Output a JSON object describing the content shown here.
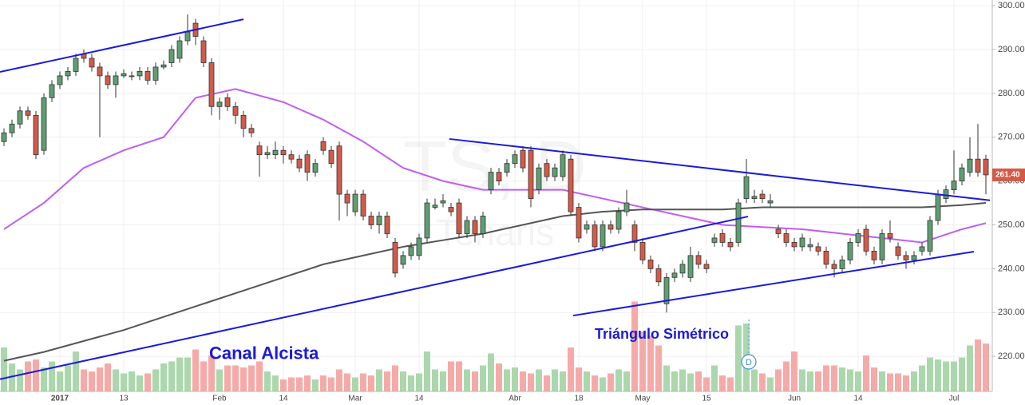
{
  "chart_data": {
    "type": "candlestick",
    "watermark": [
      "TS, D",
      "Tenaris"
    ],
    "categories": [
      null,
      null,
      null,
      null,
      null,
      null,
      null,
      "2017",
      null,
      null,
      null,
      null,
      null,
      null,
      null,
      "13",
      null,
      null,
      null,
      null,
      null,
      null,
      null,
      null,
      null,
      null,
      null,
      "Feb",
      null,
      null,
      null,
      null,
      null,
      null,
      null,
      "14",
      null,
      null,
      null,
      null,
      null,
      null,
      null,
      null,
      "Mar",
      null,
      null,
      null,
      null,
      null,
      null,
      null,
      "14",
      null,
      null,
      null,
      null,
      null,
      null,
      null,
      null,
      null,
      null,
      null,
      "Abr",
      null,
      null,
      null,
      null,
      null,
      null,
      null,
      "18",
      null,
      null,
      null,
      null,
      null,
      null,
      null,
      "May",
      null,
      null,
      null,
      null,
      null,
      null,
      null,
      "15",
      null,
      null,
      null,
      null,
      null,
      null,
      null,
      null,
      null,
      null,
      "Jun",
      null,
      null,
      null,
      null,
      null,
      null,
      null,
      "14",
      null,
      null,
      null,
      null,
      null,
      null,
      null,
      null,
      null,
      null,
      null,
      "Jul",
      null,
      null,
      null,
      null
    ],
    "open": [
      269,
      271,
      273,
      276,
      275,
      267,
      279,
      282,
      284,
      285,
      289,
      288,
      286,
      284,
      282,
      284,
      284,
      284,
      285,
      283,
      286,
      287,
      288,
      292,
      296,
      292,
      287,
      277,
      279,
      277,
      275,
      272,
      268,
      266,
      266,
      267,
      266,
      265,
      266,
      262,
      269,
      267,
      268,
      257,
      253,
      257,
      252,
      250,
      252,
      246,
      241,
      243,
      243,
      247,
      254,
      255,
      254,
      255,
      248,
      251,
      248,
      258,
      262,
      262,
      264,
      267,
      267,
      258,
      264,
      261,
      261,
      265,
      254,
      249,
      250,
      245,
      250,
      249,
      253,
      250,
      246,
      242,
      240,
      232,
      238,
      239,
      238,
      243,
      241,
      246,
      248,
      246,
      246,
      256,
      256,
      257,
      255,
      249,
      248,
      246,
      245,
      245,
      245,
      244,
      241,
      240,
      242,
      246,
      249,
      244,
      242,
      248,
      245,
      243,
      242,
      244,
      244,
      251,
      256,
      258,
      260,
      262,
      265,
      265
    ],
    "close": [
      271,
      273,
      276,
      275,
      266,
      279,
      282,
      284,
      285,
      288,
      288,
      286,
      284,
      282,
      284,
      284.5,
      284,
      285,
      283,
      286,
      286.5,
      290,
      292,
      294,
      293,
      287,
      277,
      278,
      277,
      275,
      272,
      271,
      266,
      266.5,
      267,
      266,
      265,
      263,
      262,
      264,
      267,
      264,
      257,
      255,
      257,
      252,
      250,
      252,
      248,
      239,
      243,
      245,
      247,
      255,
      254.5,
      255.5,
      253,
      248,
      251,
      248,
      252,
      262,
      260,
      264,
      266,
      263,
      256,
      263,
      261,
      263,
      266,
      253,
      247,
      250,
      245,
      250,
      249,
      253,
      255,
      246,
      242,
      240,
      237,
      238,
      239,
      241,
      243,
      241,
      240,
      247,
      246,
      245,
      255,
      261,
      256.5,
      256,
      255.5,
      248,
      246,
      245,
      247,
      245.5,
      244,
      241,
      240,
      242,
      246,
      248,
      244,
      242,
      248,
      247,
      243,
      242,
      243,
      245,
      251,
      257,
      258,
      260,
      263,
      265,
      262,
      261.4
    ],
    "high": [
      272,
      274,
      277,
      277,
      276,
      280,
      283,
      285,
      286,
      289,
      290,
      289,
      287,
      285,
      285,
      285.5,
      285,
      286,
      286,
      287,
      287.5,
      291,
      293,
      298,
      297,
      293,
      288,
      279,
      280,
      278,
      276,
      273,
      269,
      268,
      269,
      268,
      267,
      266,
      267,
      265,
      270,
      268,
      269,
      258,
      258,
      258,
      253,
      253,
      253,
      247,
      244,
      246,
      248,
      256,
      256,
      257,
      255,
      256,
      252,
      252,
      253,
      263,
      263,
      265,
      267,
      268,
      268,
      264,
      265,
      264,
      267,
      266,
      255,
      251,
      251,
      251,
      251,
      254,
      258,
      251,
      247,
      243,
      241,
      239,
      240,
      242,
      245,
      244,
      242,
      248,
      249,
      247,
      256,
      265,
      258,
      258,
      257,
      250,
      249,
      247,
      248,
      247,
      246,
      245,
      242,
      243,
      247,
      249,
      250,
      245,
      249,
      251,
      246,
      244,
      244,
      246,
      252,
      258,
      259,
      267,
      264,
      270,
      273,
      266
    ],
    "low": [
      268,
      270,
      272,
      274,
      265,
      266,
      278,
      281,
      283,
      284,
      287,
      285,
      270,
      281,
      279,
      283.5,
      283,
      283,
      282,
      282,
      285.5,
      286,
      287,
      291,
      291,
      286,
      275,
      274,
      276,
      273,
      270,
      270,
      261,
      265,
      265,
      264,
      264,
      262,
      260,
      261,
      266,
      263,
      251,
      252,
      252,
      251,
      249,
      248,
      247,
      238,
      240,
      242,
      242,
      246,
      253.5,
      254,
      252,
      247,
      247,
      246,
      247,
      257,
      259,
      261,
      263,
      262,
      254,
      257,
      260,
      260,
      260,
      252,
      246,
      248,
      244,
      244,
      248,
      248,
      252,
      244,
      241,
      239,
      236,
      230,
      237,
      238,
      237,
      240,
      239,
      245,
      245,
      244,
      245,
      255,
      255,
      255,
      254,
      247,
      245,
      244,
      244,
      244,
      243,
      240,
      238,
      239,
      241,
      245,
      243,
      241,
      241,
      246,
      242,
      240,
      241,
      243,
      243,
      250,
      255,
      257,
      259,
      261,
      261,
      257
    ],
    "volume": [
      44,
      28,
      22,
      30,
      32,
      24,
      30,
      20,
      26,
      40,
      22,
      20,
      24,
      28,
      22,
      18,
      20,
      16,
      18,
      22,
      28,
      30,
      34,
      34,
      42,
      30,
      36,
      22,
      26,
      26,
      24,
      26,
      30,
      20,
      16,
      12,
      14,
      14,
      16,
      12,
      16,
      14,
      22,
      18,
      14,
      18,
      16,
      22,
      20,
      26,
      20,
      16,
      18,
      40,
      22,
      20,
      30,
      30,
      22,
      20,
      26,
      38,
      28,
      22,
      24,
      20,
      18,
      22,
      16,
      22,
      20,
      44,
      24,
      20,
      16,
      14,
      18,
      22,
      20,
      90,
      60,
      56,
      46,
      26,
      20,
      22,
      18,
      20,
      14,
      26,
      16,
      14,
      66,
      68,
      22,
      18,
      14,
      22,
      30,
      40,
      22,
      20,
      20,
      26,
      26,
      24,
      22,
      20,
      36,
      24,
      20,
      18,
      18,
      16,
      20,
      26,
      34,
      32,
      30,
      30,
      34,
      46,
      52,
      48
    ],
    "up_color": "#5d9f72",
    "down_color": "#d45a48",
    "up_volume_color": "#a6d5a8",
    "down_volume_color": "#f5a5a3",
    "series": [
      {
        "color": "#c05ef2",
        "x": [
          0,
          5,
          10,
          15,
          20,
          24,
          29,
          35,
          40,
          45,
          50,
          55,
          60,
          65,
          70,
          75,
          80,
          85,
          90,
          95,
          100,
          105,
          110,
          115,
          120,
          123
        ],
        "values": [
          249,
          255,
          263,
          267,
          270,
          279,
          281,
          278,
          274,
          269,
          263,
          260,
          258,
          258,
          258,
          256,
          254,
          252,
          250,
          249.5,
          249,
          248,
          247,
          246,
          249,
          250.4
        ]
      },
      {
        "color": "#555555",
        "x": [
          0,
          5,
          10,
          15,
          20,
          25,
          30,
          35,
          40,
          45,
          50,
          55,
          60,
          65,
          70,
          75,
          80,
          85,
          90,
          95,
          100,
          105,
          110,
          115,
          120,
          123
        ],
        "values": [
          219,
          221,
          223.5,
          226,
          229,
          232,
          235,
          238,
          241,
          243,
          245,
          246.5,
          248,
          250,
          252,
          253,
          253.5,
          253.5,
          253.5,
          254,
          254,
          254,
          254,
          254,
          254.5,
          255
        ]
      }
    ],
    "trendlines": [
      {
        "color": "#1a1adc",
        "x": [
          -0.5,
          30
        ],
        "values": [
          284.9,
          296.9
        ]
      },
      {
        "color": "#1a1adc",
        "x": [
          -0.5,
          93.2
        ],
        "values": [
          214.8,
          251.9
        ]
      },
      {
        "color": "#1a1adc",
        "x": [
          55.8,
          123.5
        ],
        "values": [
          269.6,
          255.6
        ]
      },
      {
        "color": "#1a1adc",
        "x": [
          71.3,
          121.5
        ],
        "values": [
          229.3,
          243.9
        ]
      }
    ],
    "annotations": [
      {
        "text": "Canal Alcista",
        "x": 25.7,
        "y": 220.4
      },
      {
        "text": "Triángulo Simétrico",
        "x": 74,
        "y": 224.9
      }
    ],
    "event_marker": {
      "label": "D",
      "x": 93.3
    },
    "price_label": "261.40",
    "ylim": [
      212,
      301.3
    ],
    "yticks": [
      {
        "value": 220,
        "label": "220.00"
      },
      {
        "value": 230,
        "label": "230.00"
      },
      {
        "value": 240,
        "label": "240.00"
      },
      {
        "value": 250,
        "label": "250.00"
      },
      {
        "value": 260,
        "label": "260.00"
      },
      {
        "value": 270,
        "label": "270.00"
      },
      {
        "value": 280,
        "label": "280.00"
      },
      {
        "value": 290,
        "label": "290.00"
      },
      {
        "value": 300,
        "label": "300.00"
      }
    ],
    "grid": true
  }
}
